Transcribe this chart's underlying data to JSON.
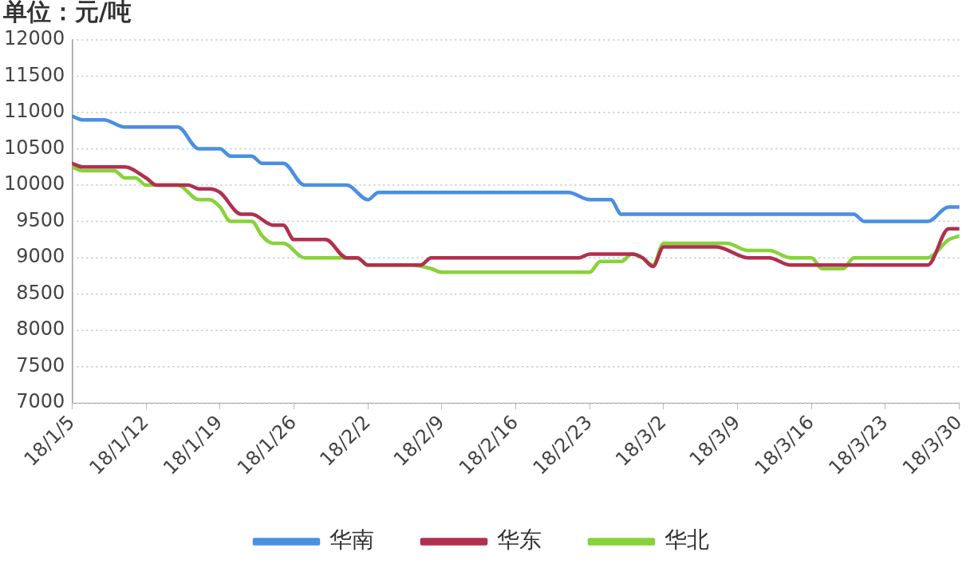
{
  "chart_data": {
    "type": "line",
    "ylabel": "单位：元/吨",
    "xlim": [
      "--01-05",
      "--03-30"
    ],
    "xticks": [
      {
        "value": "--01-05",
        "label": "18/1/5"
      },
      {
        "value": "--01-12",
        "label": "18/1/12"
      },
      {
        "value": "--01-19",
        "label": "18/1/19"
      },
      {
        "value": "--01-26",
        "label": "18/1/26"
      },
      {
        "value": "--02-02",
        "label": "18/2/2"
      },
      {
        "value": "--02-09",
        "label": "18/2/9"
      },
      {
        "value": "--02-16",
        "label": "18/2/16"
      },
      {
        "value": "--02-23",
        "label": "18/2/23"
      },
      {
        "value": "--03-02",
        "label": "18/3/2"
      },
      {
        "value": "--03-09",
        "label": "18/3/9"
      },
      {
        "value": "--03-16",
        "label": "18/3/16"
      },
      {
        "value": "--03-23",
        "label": "18/3/23"
      },
      {
        "value": "--03-30",
        "label": "18/3/30"
      }
    ],
    "ylim": [
      7000,
      12000
    ],
    "yticks": [
      7000,
      7500,
      8000,
      8500,
      9000,
      9500,
      10000,
      10500,
      11000,
      11500,
      12000
    ],
    "grid": "y",
    "legend": "bottom",
    "marker": "none",
    "line_style": "solid",
    "series": [
      {
        "name": "华南",
        "color": "#4a8fe2",
        "x": [
          "--01-05",
          "--01-06",
          "--01-08",
          "--01-10",
          "--01-15",
          "--01-17",
          "--01-19",
          "--01-20",
          "--01-22",
          "--01-23",
          "--01-25",
          "--01-27",
          "--01-31",
          "--02-02",
          "--02-03",
          "--02-21",
          "--02-23",
          "--02-25",
          "--02-26",
          "--03-20",
          "--03-21",
          "--03-27",
          "--03-29",
          "--03-30"
        ],
        "values": [
          10950,
          10900,
          10900,
          10800,
          10800,
          10500,
          10500,
          10400,
          10400,
          10300,
          10300,
          10000,
          10000,
          9800,
          9900,
          9900,
          9800,
          9800,
          9600,
          9600,
          9500,
          9500,
          9700,
          9700
        ]
      },
      {
        "name": "华东",
        "color": "#b03050",
        "x": [
          "--01-05",
          "--01-06",
          "--01-10",
          "--01-12",
          "--01-13",
          "--01-16",
          "--01-17",
          "--01-18",
          "--01-19",
          "--01-21",
          "--01-22",
          "--01-24",
          "--01-25",
          "--01-26",
          "--01-29",
          "--01-31",
          "--02-01",
          "--02-02",
          "--02-07",
          "--02-08",
          "--02-22",
          "--02-23",
          "--02-27",
          "--02-28",
          "--03-01",
          "--03-02",
          "--03-07",
          "--03-10",
          "--03-12",
          "--03-14",
          "--03-27",
          "--03-29",
          "--03-30"
        ],
        "values": [
          10300,
          10250,
          10250,
          10100,
          10000,
          10000,
          9950,
          9950,
          9900,
          9600,
          9600,
          9450,
          9450,
          9250,
          9250,
          9000,
          9000,
          8900,
          8900,
          9000,
          9000,
          9050,
          9050,
          9000,
          8880,
          9150,
          9150,
          9000,
          9000,
          8900,
          8900,
          9400,
          9400
        ]
      },
      {
        "name": "华北",
        "color": "#88d23a",
        "x": [
          "--01-05",
          "--01-06",
          "--01-09",
          "--01-10",
          "--01-11",
          "--01-12",
          "--01-15",
          "--01-17",
          "--01-18",
          "--01-19",
          "--01-20",
          "--01-22",
          "--01-23",
          "--01-24",
          "--01-25",
          "--01-27",
          "--02-01",
          "--02-02",
          "--02-06",
          "--02-08",
          "--02-09",
          "--02-23",
          "--02-24",
          "--02-26",
          "--02-27",
          "--02-28",
          "--03-01",
          "--03-02",
          "--03-08",
          "--03-10",
          "--03-12",
          "--03-14",
          "--03-16",
          "--03-17",
          "--03-19",
          "--03-20",
          "--03-27",
          "--03-29",
          "--03-30"
        ],
        "values": [
          10250,
          10200,
          10200,
          10100,
          10100,
          10000,
          10000,
          9800,
          9800,
          9700,
          9500,
          9500,
          9300,
          9200,
          9200,
          9000,
          9000,
          8900,
          8900,
          8850,
          8800,
          8800,
          8950,
          8950,
          9050,
          9000,
          8900,
          9200,
          9200,
          9100,
          9100,
          9000,
          9000,
          8850,
          8850,
          9000,
          9000,
          9250,
          9300
        ]
      }
    ]
  }
}
